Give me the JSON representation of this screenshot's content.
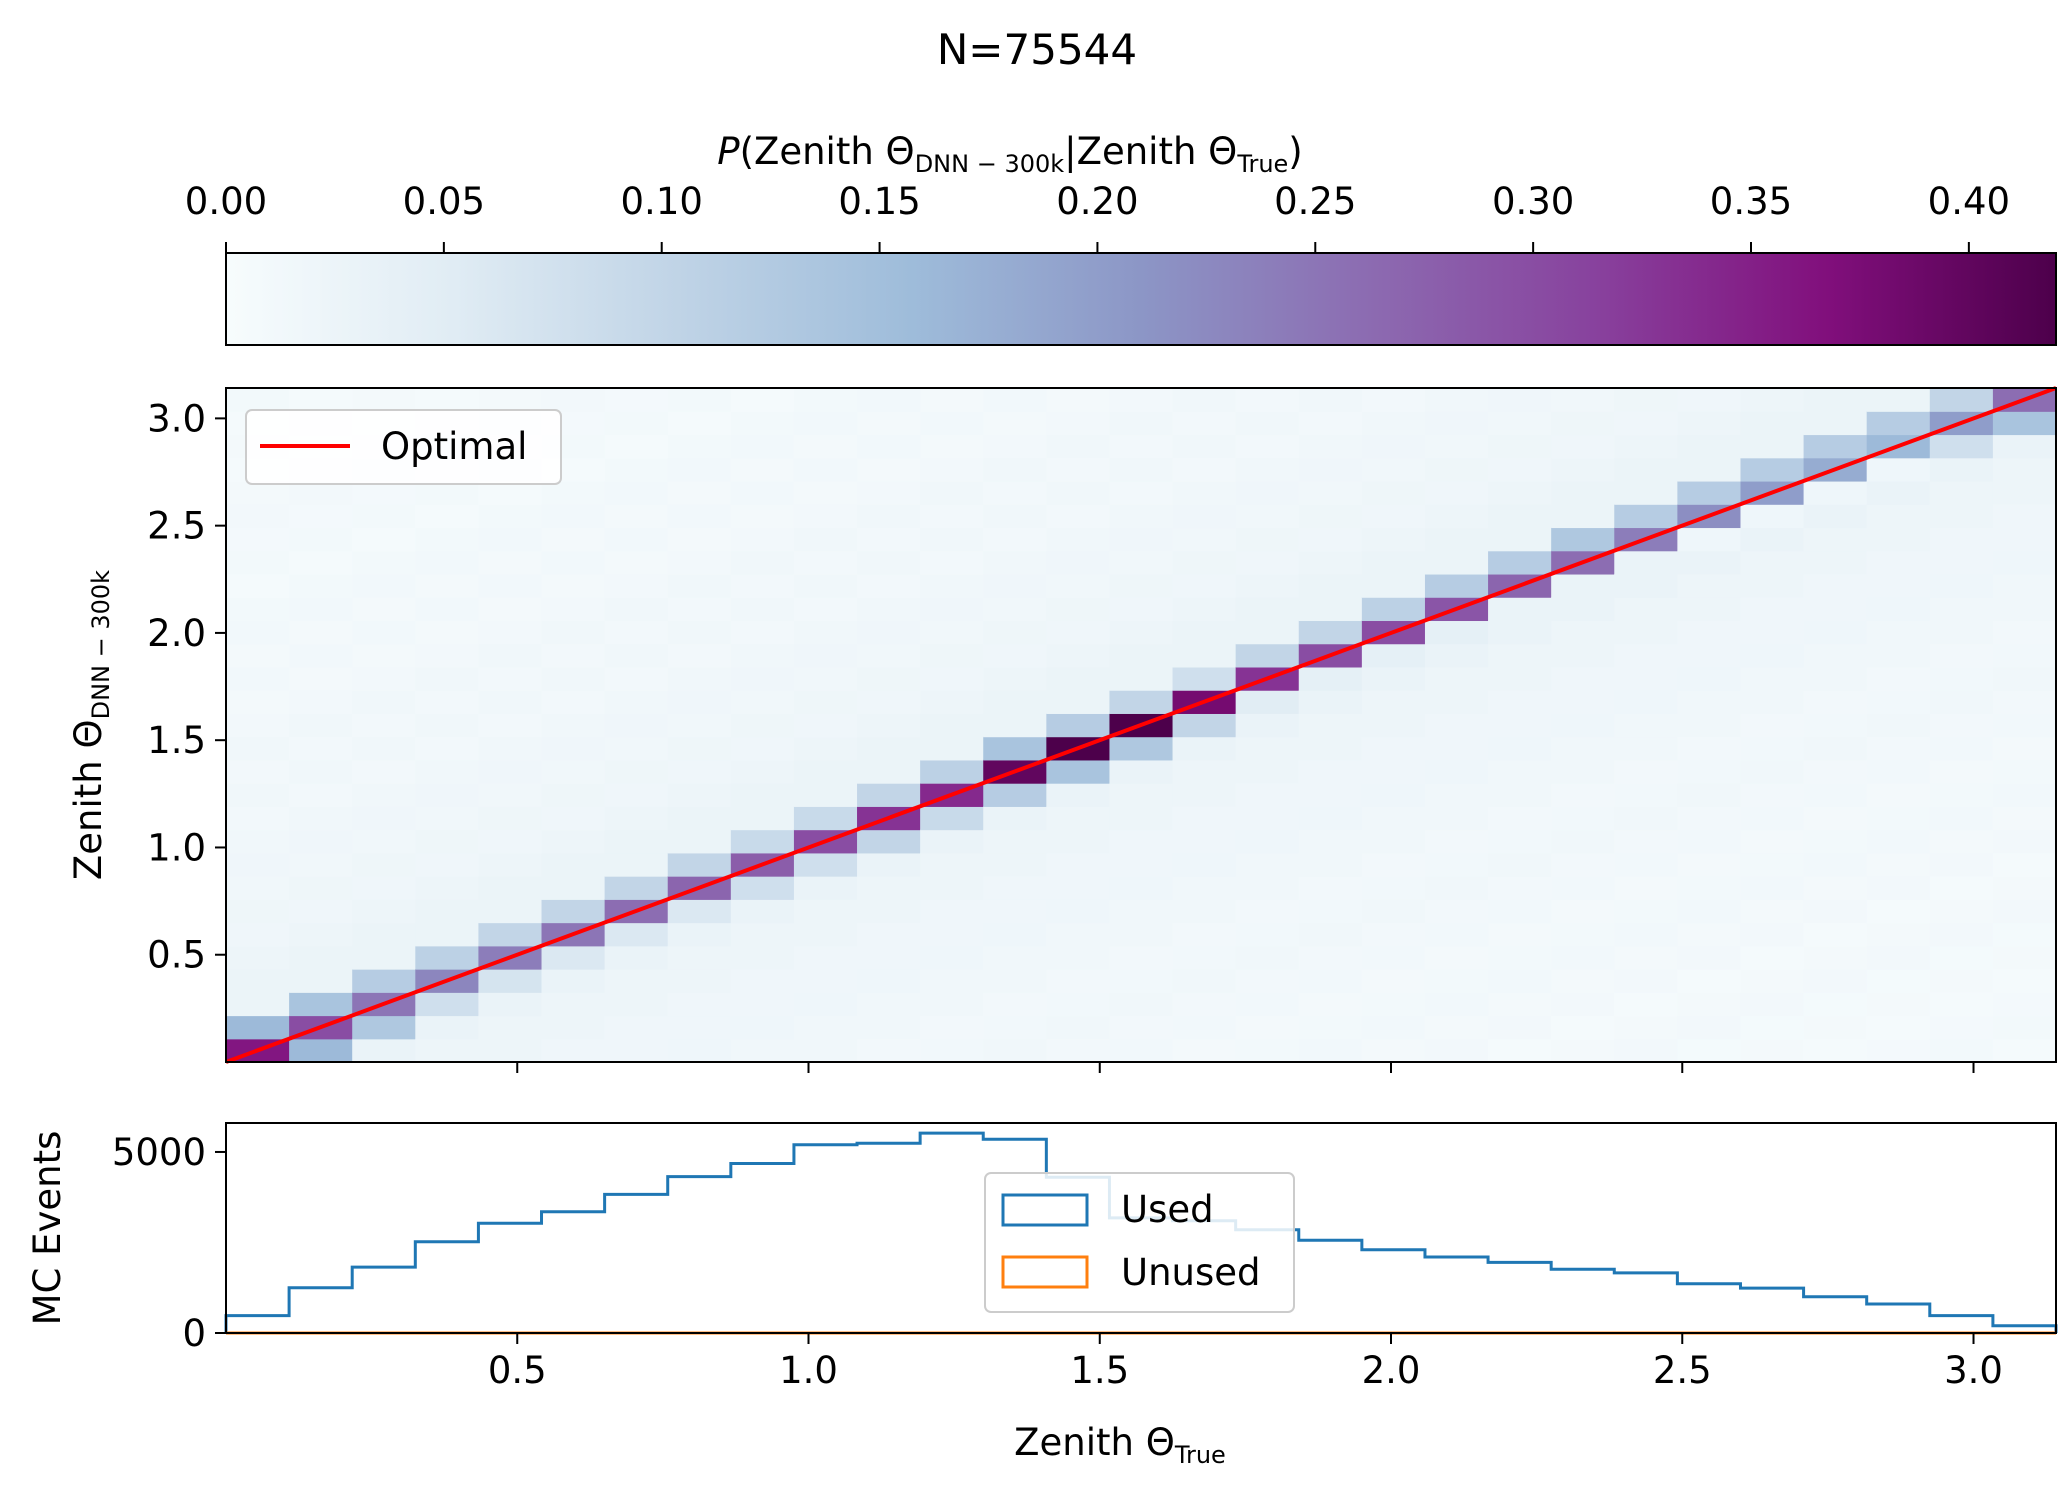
{
  "chart_data": [
    {
      "type": "heatmap",
      "title": "N=75544",
      "colorbar": {
        "label_prefix": "P",
        "label_main": "(Zenith Θ",
        "label_sub1": "DNN − 300k",
        "label_mid": "|Zenith Θ",
        "label_sub2": "True",
        "label_end": ")",
        "range": [
          0,
          0.42
        ],
        "ticks": [
          "0.00",
          "0.05",
          "0.10",
          "0.15",
          "0.20",
          "0.25",
          "0.30",
          "0.35",
          "0.40"
        ],
        "tick_values": [
          0,
          0.05,
          0.1,
          0.15,
          0.2,
          0.25,
          0.3,
          0.35,
          0.4
        ],
        "colormap": "BuPu",
        "colors": [
          "#f7fcfd",
          "#e0ecf4",
          "#bfd3e6",
          "#9ebcda",
          "#8c96c6",
          "#8c6bb1",
          "#88419d",
          "#810f7c",
          "#4d004b"
        ]
      },
      "xlim": [
        0,
        3.1416
      ],
      "ylim": [
        0,
        3.1416
      ],
      "bins": 29,
      "ylabel_main": "Zenith Θ",
      "ylabel_sub": "DNN − 300k",
      "yticks": [
        "0.5",
        "1.0",
        "1.5",
        "2.0",
        "2.5",
        "3.0"
      ],
      "ytick_values": [
        0.5,
        1.0,
        1.5,
        2.0,
        2.5,
        3.0
      ],
      "xtick_values": [
        0.5,
        1.0,
        1.5,
        2.0,
        2.5,
        3.0
      ],
      "diagonal": [
        0.36,
        0.3,
        0.25,
        0.23,
        0.24,
        0.25,
        0.26,
        0.27,
        0.28,
        0.3,
        0.33,
        0.34,
        0.4,
        0.42,
        0.42,
        0.38,
        0.33,
        0.3,
        0.3,
        0.29,
        0.27,
        0.26,
        0.24,
        0.22,
        0.2,
        0.18,
        0.16,
        0.2,
        0.26
      ],
      "below": [
        0.1,
        0.16,
        0.13,
        0.08,
        0.07,
        0.06,
        0.06,
        0.06,
        0.08,
        0.08,
        0.1,
        0.09,
        0.12,
        0.14,
        0.13,
        0.1,
        0.05,
        0.04,
        0.04,
        0.04,
        0.03,
        0.03,
        0.03,
        0.02,
        0.02,
        0.02,
        0.02,
        0.08,
        0.14
      ],
      "above": [
        0.16,
        0.14,
        0.12,
        0.11,
        0.1,
        0.1,
        0.1,
        0.1,
        0.09,
        0.09,
        0.1,
        0.11,
        0.14,
        0.12,
        0.1,
        0.08,
        0.1,
        0.1,
        0.11,
        0.12,
        0.12,
        0.13,
        0.12,
        0.12,
        0.12,
        0.12,
        0.12,
        0.1,
        0.0
      ],
      "legend": {
        "label": "Optimal",
        "color": "#ff0000",
        "position": "upper-left"
      },
      "optimal_line": {
        "x": [
          0,
          3.1416
        ],
        "y": [
          0,
          3.1416
        ]
      }
    },
    {
      "type": "histogram",
      "ylabel": "MC Events",
      "xlabel_main": "Zenith Θ",
      "xlabel_sub": "True",
      "ylim": [
        0,
        5800
      ],
      "yticks": [
        "0",
        "5000"
      ],
      "ytick_values": [
        0,
        5000
      ],
      "xticks": [
        "0.5",
        "1.0",
        "1.5",
        "2.0",
        "2.5",
        "3.0"
      ],
      "xtick_values": [
        0.5,
        1.0,
        1.5,
        2.0,
        2.5,
        3.0
      ],
      "series": [
        {
          "name": "Used",
          "color": "#1f77b4",
          "values": [
            480,
            1250,
            1820,
            2520,
            3030,
            3350,
            3830,
            4320,
            4680,
            5200,
            5240,
            5520,
            5350,
            4300,
            3180,
            3100,
            2850,
            2560,
            2300,
            2100,
            1950,
            1760,
            1660,
            1360,
            1240,
            1000,
            800,
            480,
            200
          ]
        },
        {
          "name": "Unused",
          "color": "#ff7f0e",
          "values": [
            0,
            0,
            0,
            0,
            0,
            0,
            0,
            0,
            0,
            0,
            0,
            0,
            0,
            0,
            0,
            0,
            0,
            0,
            0,
            0,
            0,
            0,
            0,
            0,
            0,
            0,
            0,
            0,
            0
          ]
        }
      ],
      "legend_position": "center"
    }
  ]
}
